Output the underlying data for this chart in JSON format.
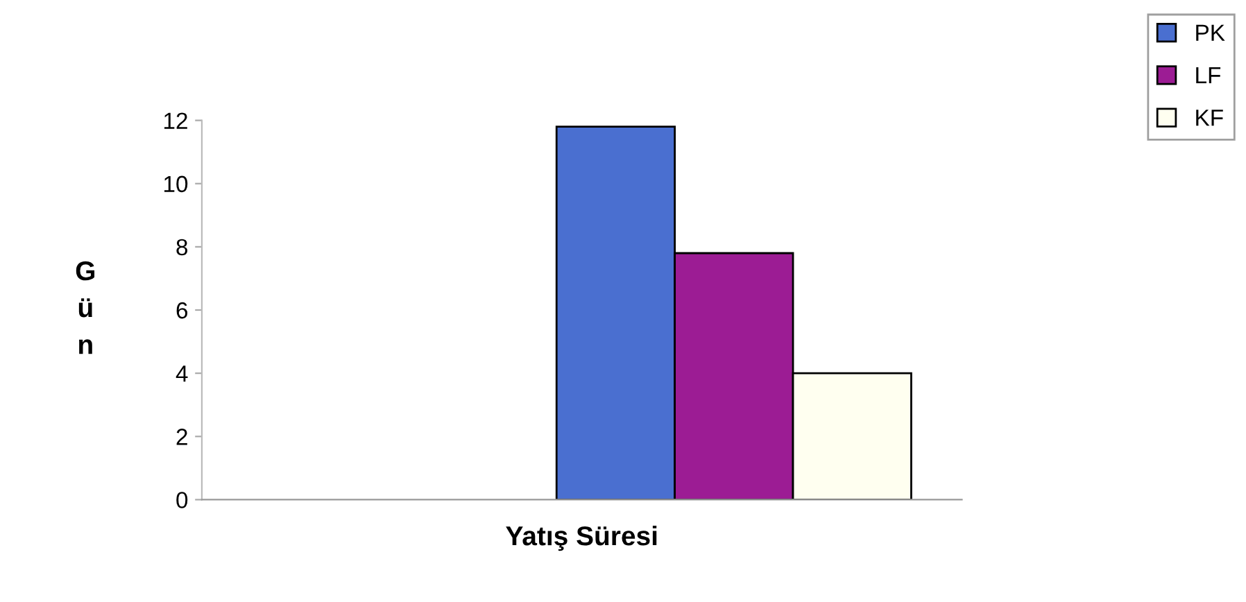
{
  "chart_data": {
    "type": "bar",
    "xlabel": "Yatış Süresi",
    "ylabel": "Gün",
    "categories": [
      null
    ],
    "series": [
      {
        "name": "PK",
        "color": "#4a6fd0",
        "values": [
          11.8
        ]
      },
      {
        "name": "LF",
        "color": "#9c1c94",
        "values": [
          7.8
        ]
      },
      {
        "name": "KF",
        "color": "#fffff0",
        "values": [
          4.0
        ]
      }
    ],
    "ylim": [
      0,
      12
    ],
    "yticks": [
      0,
      2,
      4,
      6,
      8,
      10,
      12
    ],
    "grid": false,
    "legend": "top right"
  }
}
